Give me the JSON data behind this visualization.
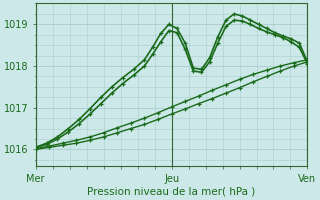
{
  "xlabel": "Pression niveau de la mer( hPa )",
  "bg_color": "#cce8e8",
  "grid_color": "#aacccc",
  "line_color": "#1a6b1a",
  "ylim": [
    1015.6,
    1019.5
  ],
  "yticks": [
    1016,
    1017,
    1018,
    1019
  ],
  "xtick_labels": [
    "Mer",
    "Jeu",
    "Ven"
  ],
  "xtick_positions": [
    0.0,
    0.5,
    1.0
  ],
  "series": [
    {
      "x": [
        0.0,
        0.05,
        0.1,
        0.15,
        0.2,
        0.25,
        0.3,
        0.35,
        0.4,
        0.45,
        0.5,
        0.55,
        0.6,
        0.65,
        0.7,
        0.75,
        0.8,
        0.85,
        0.9,
        0.95,
        1.0
      ],
      "y": [
        1016.0,
        1016.05,
        1016.1,
        1016.15,
        1016.22,
        1016.3,
        1016.4,
        1016.5,
        1016.6,
        1016.72,
        1016.85,
        1016.97,
        1017.1,
        1017.22,
        1017.35,
        1017.48,
        1017.62,
        1017.75,
        1017.88,
        1018.0,
        1018.1
      ],
      "lw": 1.0
    },
    {
      "x": [
        0.0,
        0.05,
        0.1,
        0.15,
        0.2,
        0.25,
        0.3,
        0.35,
        0.4,
        0.45,
        0.5,
        0.55,
        0.6,
        0.65,
        0.7,
        0.75,
        0.8,
        0.85,
        0.9,
        0.95,
        1.0
      ],
      "y": [
        1016.02,
        1016.08,
        1016.15,
        1016.22,
        1016.3,
        1016.4,
        1016.52,
        1016.63,
        1016.75,
        1016.88,
        1017.02,
        1017.15,
        1017.28,
        1017.42,
        1017.55,
        1017.68,
        1017.8,
        1017.9,
        1018.0,
        1018.08,
        1018.15
      ],
      "lw": 1.0
    },
    {
      "x": [
        0.0,
        0.04,
        0.08,
        0.12,
        0.16,
        0.2,
        0.24,
        0.28,
        0.32,
        0.36,
        0.4,
        0.43,
        0.46,
        0.49,
        0.52,
        0.55,
        0.58,
        0.61,
        0.64,
        0.67,
        0.7,
        0.73,
        0.76,
        0.79,
        0.82,
        0.85,
        0.88,
        0.91,
        0.94,
        0.97,
        1.0
      ],
      "y": [
        1016.05,
        1016.15,
        1016.3,
        1016.5,
        1016.72,
        1016.98,
        1017.25,
        1017.5,
        1017.72,
        1017.92,
        1018.15,
        1018.45,
        1018.78,
        1019.0,
        1018.9,
        1018.55,
        1017.95,
        1017.92,
        1018.2,
        1018.7,
        1019.1,
        1019.25,
        1019.2,
        1019.1,
        1019.0,
        1018.9,
        1018.8,
        1018.72,
        1018.65,
        1018.55,
        1018.1
      ],
      "lw": 1.2
    },
    {
      "x": [
        0.0,
        0.04,
        0.08,
        0.12,
        0.16,
        0.2,
        0.24,
        0.28,
        0.32,
        0.36,
        0.4,
        0.43,
        0.46,
        0.49,
        0.52,
        0.55,
        0.58,
        0.61,
        0.64,
        0.67,
        0.7,
        0.73,
        0.76,
        0.79,
        0.82,
        0.85,
        0.88,
        0.91,
        0.94,
        0.97,
        1.0
      ],
      "y": [
        1016.05,
        1016.12,
        1016.25,
        1016.42,
        1016.62,
        1016.85,
        1017.1,
        1017.35,
        1017.58,
        1017.78,
        1018.0,
        1018.28,
        1018.58,
        1018.85,
        1018.8,
        1018.4,
        1017.88,
        1017.85,
        1018.1,
        1018.55,
        1018.95,
        1019.1,
        1019.08,
        1019.0,
        1018.9,
        1018.82,
        1018.75,
        1018.68,
        1018.58,
        1018.45,
        1018.05
      ],
      "lw": 1.2
    }
  ]
}
